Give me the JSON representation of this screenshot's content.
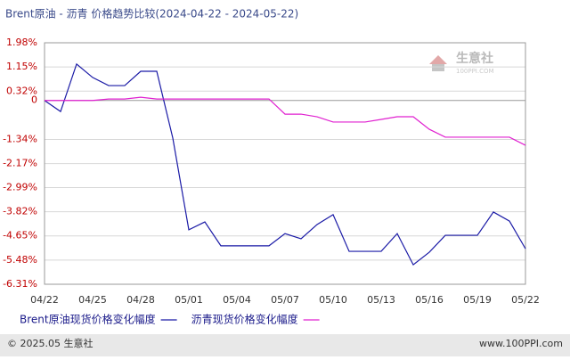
{
  "chart_data": {
    "type": "line",
    "title": "Brent原油 - 沥青 价格趋势比较(2024-04-22 - 2024-05-22)",
    "categories": [
      "04/22",
      null,
      null,
      "04/25",
      null,
      null,
      "04/28",
      null,
      null,
      "05/01",
      null,
      null,
      "05/04",
      null,
      null,
      "05/07",
      null,
      null,
      "05/10",
      null,
      null,
      "05/13",
      null,
      null,
      "05/16",
      null,
      null,
      "05/19",
      null,
      null,
      "05/22"
    ],
    "series": [
      {
        "name": "Brent原油现货价格变化幅度",
        "color": "#1a1aa6",
        "values": [
          0,
          -0.38,
          1.25,
          0.79,
          0.51,
          0.51,
          1.0,
          1.0,
          -1.29,
          -4.44,
          -4.17,
          -4.99,
          -4.99,
          -4.99,
          -4.99,
          -4.57,
          -4.75,
          -4.26,
          -3.92,
          -5.18,
          -5.18,
          -5.18,
          -4.57,
          -5.64,
          -5.21,
          -4.63,
          -4.63,
          -4.63,
          -3.83,
          -4.14,
          -5.09
        ]
      },
      {
        "name": "沥青现货价格变化幅度",
        "color": "#e020d0",
        "values": [
          0,
          0,
          0,
          0,
          0.05,
          0.05,
          0.11,
          0.05,
          0.05,
          0.05,
          0.05,
          0.05,
          0.05,
          0.05,
          0.05,
          -0.47,
          -0.47,
          -0.56,
          -0.74,
          -0.74,
          -0.74,
          -0.65,
          -0.56,
          -0.56,
          -0.99,
          -1.26,
          -1.26,
          -1.26,
          -1.26,
          -1.26,
          -1.54
        ]
      }
    ],
    "ylim": [
      -6.31,
      1.98
    ],
    "yticks": [
      {
        "value": 1.98,
        "label": "1.98%"
      },
      {
        "value": 1.15,
        "label": "1.15%"
      },
      {
        "value": 0.32,
        "label": "0.32%"
      },
      0,
      {
        "value": -1.34,
        "label": "-1.34%"
      },
      {
        "value": -2.17,
        "label": "-2.17%"
      },
      {
        "value": -2.99,
        "label": "-2.99%"
      },
      {
        "value": -3.82,
        "label": "-3.82%"
      },
      {
        "value": -4.65,
        "label": "-4.65%"
      },
      {
        "value": -5.48,
        "label": "-5.48%"
      },
      {
        "value": -6.31,
        "label": "-6.31%"
      }
    ],
    "grid": true
  },
  "watermark": {
    "name": "生意社",
    "url": "100PPI.COM"
  },
  "footer": {
    "left": "© 2025.05 生意社",
    "right": "www.100PPI.com"
  }
}
